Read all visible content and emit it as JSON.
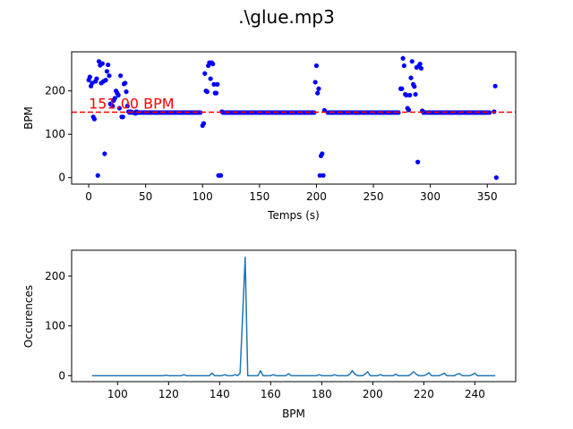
{
  "figure": {
    "title": ".\\glue.mp3"
  },
  "chart_data": [
    {
      "type": "scatter",
      "xlabel": "Temps (s)",
      "ylabel": "BPM",
      "xlim": [
        -15,
        375
      ],
      "ylim": [
        -15,
        290
      ],
      "xticks": [
        0,
        50,
        100,
        150,
        200,
        250,
        300,
        350
      ],
      "yticks": [
        0,
        100,
        200
      ],
      "grid": false,
      "colors": {
        "points": "#0000ff",
        "reference_line": "#ff0000",
        "annotation": "#ff0000"
      },
      "reference_line": {
        "value": 151,
        "style": "dashed",
        "label": "151.00 BPM"
      },
      "series": [
        {
          "x": [
            0,
            1,
            2,
            3,
            4,
            5,
            6,
            7,
            8,
            9,
            10,
            11,
            12,
            13,
            14,
            15,
            16,
            17,
            18,
            19,
            20,
            21,
            22,
            23,
            24,
            25,
            26,
            27,
            28,
            29,
            30,
            31,
            32,
            33,
            34,
            35,
            36,
            37,
            38,
            39,
            40,
            41,
            42,
            43,
            44,
            100,
            101,
            102,
            103,
            104,
            105,
            106,
            107,
            108,
            109,
            110,
            111,
            112,
            113,
            114,
            115,
            116,
            117,
            118,
            119,
            120,
            121,
            199,
            200,
            201,
            202,
            203,
            204,
            205,
            206,
            207,
            274,
            275,
            276,
            277,
            278,
            279,
            280,
            281,
            282,
            283,
            284,
            285,
            286,
            287,
            288,
            289,
            290,
            291,
            292,
            293,
            294,
            295,
            296,
            356,
            357,
            358
          ],
          "y": [
            225,
            232,
            211,
            218,
            140,
            135,
            222,
            228,
            5,
            268,
            259,
            218,
            263,
            222,
            55,
            225,
            245,
            260,
            235,
            170,
            168,
            165,
            178,
            183,
            200,
            195,
            190,
            160,
            235,
            140,
            140,
            216,
            218,
            198,
            165,
            152,
            150,
            152,
            150,
            150,
            150,
            148,
            152,
            150,
            150,
            120,
            125,
            240,
            200,
            198,
            258,
            265,
            228,
            265,
            262,
            215,
            195,
            195,
            215,
            5,
            5,
            5,
            152,
            150,
            150,
            150,
            150,
            220,
            258,
            195,
            205,
            5,
            50,
            55,
            5,
            155,
            205,
            205,
            275,
            258,
            192,
            190,
            160,
            156,
            190,
            230,
            268,
            215,
            210,
            192,
            254,
            36,
            258,
            262,
            252,
            154,
            150,
            150,
            150,
            152,
            211,
            0
          ]
        }
      ],
      "steady_band": {
        "value": 150,
        "segments": [
          [
            45,
            98
          ],
          [
            122,
            198
          ],
          [
            210,
            272
          ],
          [
            298,
            352
          ]
        ]
      },
      "annotation_at": [
        0,
        151
      ]
    },
    {
      "type": "line",
      "xlabel": "BPM",
      "ylabel": "Occurences",
      "xlim": [
        82,
        256
      ],
      "ylim": [
        -12,
        252
      ],
      "xticks": [
        100,
        120,
        140,
        160,
        180,
        200,
        220,
        240
      ],
      "yticks": [
        0,
        100,
        200
      ],
      "grid": false,
      "colors": {
        "line": "#1f77b4"
      },
      "series": [
        {
          "x": [
            90,
            118,
            119,
            120,
            121,
            125,
            126,
            127,
            136,
            137,
            138,
            139,
            141,
            142,
            143,
            145,
            146,
            147,
            148,
            149,
            150,
            151,
            152,
            153,
            154,
            155,
            156,
            157,
            158,
            160,
            161,
            162,
            163,
            166,
            167,
            168,
            169,
            178,
            179,
            180,
            181,
            184,
            185,
            186,
            187,
            190,
            191,
            192,
            193,
            194,
            196,
            197,
            198,
            199,
            200,
            202,
            203,
            204,
            205,
            208,
            209,
            210,
            211,
            214,
            215,
            216,
            217,
            218,
            220,
            221,
            222,
            223,
            224,
            226,
            227,
            228,
            229,
            232,
            233,
            234,
            235,
            238,
            239,
            240,
            241,
            248
          ],
          "y": [
            0,
            0,
            1,
            0,
            0,
            0,
            2,
            0,
            0,
            5,
            0,
            0,
            0,
            2,
            0,
            0,
            2,
            0,
            5,
            120,
            238,
            0,
            0,
            0,
            0,
            0,
            10,
            0,
            0,
            0,
            2,
            0,
            0,
            0,
            4,
            0,
            0,
            0,
            2,
            0,
            0,
            0,
            2,
            0,
            0,
            0,
            3,
            10,
            3,
            0,
            0,
            3,
            8,
            0,
            0,
            0,
            2,
            0,
            0,
            0,
            3,
            0,
            0,
            0,
            3,
            8,
            3,
            0,
            0,
            2,
            6,
            0,
            0,
            0,
            2,
            5,
            0,
            0,
            3,
            4,
            0,
            0,
            2,
            5,
            0,
            0
          ]
        }
      ]
    }
  ]
}
